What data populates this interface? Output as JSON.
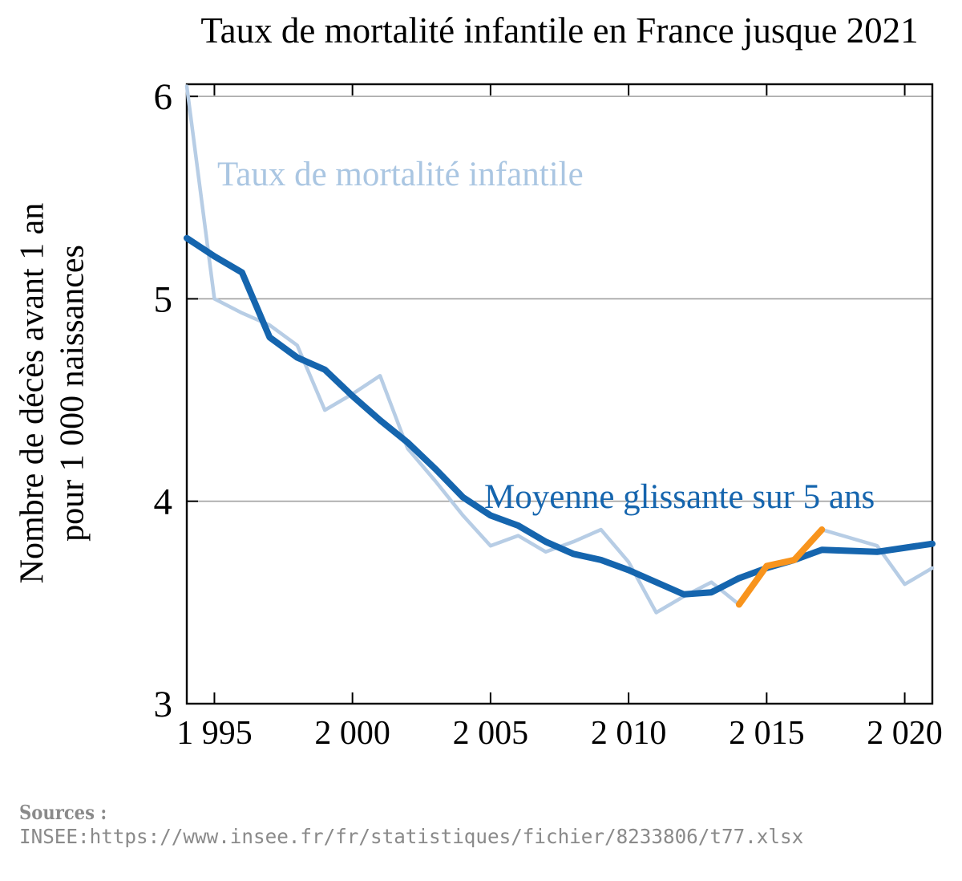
{
  "chart_data": {
    "type": "line",
    "title": "Taux de mortalité infantile en France jusque 2021",
    "ylabel_lines": [
      "Nombre de décès avant 1 an",
      "pour 1 000 naissances"
    ],
    "xlim": [
      1994,
      2021
    ],
    "ylim": [
      3,
      6.06
    ],
    "grid_y": [
      4,
      5,
      6
    ],
    "grid_on": true,
    "legend_position": "inline-labels",
    "yticks": [
      {
        "v": 3,
        "label": "3"
      },
      {
        "v": 4,
        "label": "4"
      },
      {
        "v": 5,
        "label": "5"
      },
      {
        "v": 6,
        "label": "6"
      }
    ],
    "xticks": [
      {
        "v": 1995,
        "label": "1 995"
      },
      {
        "v": 2000,
        "label": "2 000"
      },
      {
        "v": 2005,
        "label": "2 005"
      },
      {
        "v": 2010,
        "label": "2 010"
      },
      {
        "v": 2015,
        "label": "2 015"
      },
      {
        "v": 2020,
        "label": "2 020"
      }
    ],
    "x": [
      1994,
      1995,
      1996,
      1997,
      1998,
      1999,
      2000,
      2001,
      2002,
      2003,
      2004,
      2005,
      2006,
      2007,
      2008,
      2009,
      2010,
      2011,
      2012,
      2013,
      2014,
      2015,
      2016,
      2017,
      2018,
      2019,
      2020,
      2021
    ],
    "series": [
      {
        "name": "Taux de mortalité infantile",
        "color": "#b7cde5",
        "line_width": 4.5,
        "x_start": 1994,
        "values": [
          6.05,
          5.0,
          4.93,
          4.87,
          4.77,
          4.45,
          4.53,
          4.62,
          4.26,
          4.1,
          3.93,
          3.78,
          3.83,
          3.75,
          3.8,
          3.86,
          3.7,
          3.45,
          3.53,
          3.6,
          3.49,
          3.68,
          3.71,
          3.86,
          3.82,
          3.78,
          3.59,
          3.67
        ]
      },
      {
        "name": "Moyenne glissante sur 5 ans",
        "color": "#1565ae",
        "line_width": 8,
        "x_start": 1994,
        "values": [
          5.3,
          5.21,
          5.13,
          4.81,
          4.71,
          4.65,
          4.52,
          4.4,
          4.29,
          4.16,
          4.02,
          3.93,
          3.88,
          3.8,
          3.74,
          3.71,
          3.66,
          3.6,
          3.54,
          3.55,
          3.62,
          3.67,
          3.71,
          3.76,
          3.755,
          3.75,
          3.77,
          3.79
        ]
      },
      {
        "name": "highlight 2014-2017",
        "color": "#f8941d",
        "line_width": 8,
        "x_start": 2014,
        "values": [
          3.49,
          3.68,
          3.71,
          3.86
        ]
      }
    ],
    "frame_color": "#000000",
    "grid_color": "#a0a0a0"
  },
  "footer": {
    "sources_label": "Sources :",
    "source_line": "INSEE:https://www.insee.fr/fr/statistiques/fichier/8233806/t77.xlsx"
  }
}
